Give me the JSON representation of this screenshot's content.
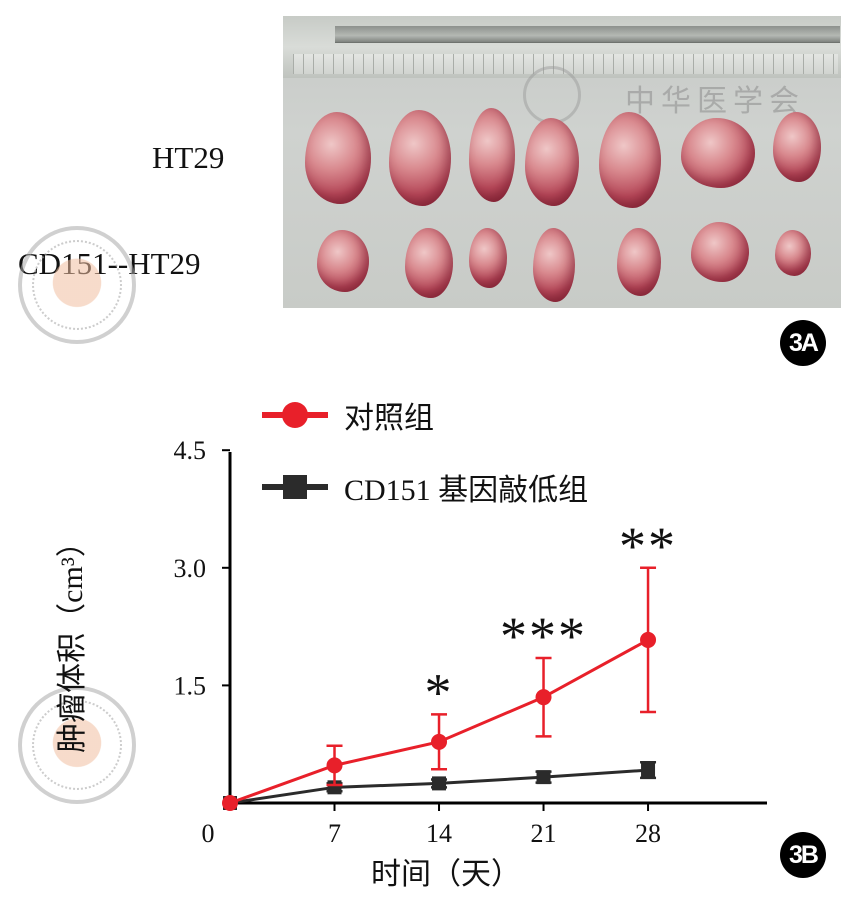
{
  "panel_a": {
    "row_labels": [
      "HT29",
      "CD151--HT29"
    ],
    "tag": "3A"
  },
  "panel_b": {
    "tag": "3B"
  },
  "colors": {
    "control": "#e8202a",
    "knockdown": "#2b2b2b",
    "axis": "#000000"
  },
  "chart_data": {
    "type": "line",
    "title": "",
    "xlabel": "时间（天）",
    "ylabel": "肿瘤体积（cm³）",
    "x": [
      0,
      7,
      14,
      21,
      28
    ],
    "x_ticks": [
      "0",
      "7",
      "14",
      "21",
      "28"
    ],
    "y_ticks": [
      "1.5",
      "3.0",
      "4.5"
    ],
    "ylim": [
      0,
      4.5
    ],
    "legend_position": "top-left",
    "series": [
      {
        "name": "对照组",
        "marker": "circle",
        "color": "#e8202a",
        "values": [
          0.0,
          0.48,
          0.78,
          1.35,
          2.08
        ],
        "error": [
          0.0,
          0.25,
          0.35,
          0.5,
          0.92
        ]
      },
      {
        "name": "CD151 基因敲低组",
        "marker": "square",
        "color": "#2b2b2b",
        "values": [
          0.0,
          0.2,
          0.25,
          0.33,
          0.42
        ],
        "error": [
          0.0,
          0.05,
          0.05,
          0.07,
          0.1
        ]
      }
    ],
    "annotations": [
      {
        "x": 14,
        "text": "*"
      },
      {
        "x": 21,
        "text": "***"
      },
      {
        "x": 28,
        "text": "**"
      }
    ]
  }
}
